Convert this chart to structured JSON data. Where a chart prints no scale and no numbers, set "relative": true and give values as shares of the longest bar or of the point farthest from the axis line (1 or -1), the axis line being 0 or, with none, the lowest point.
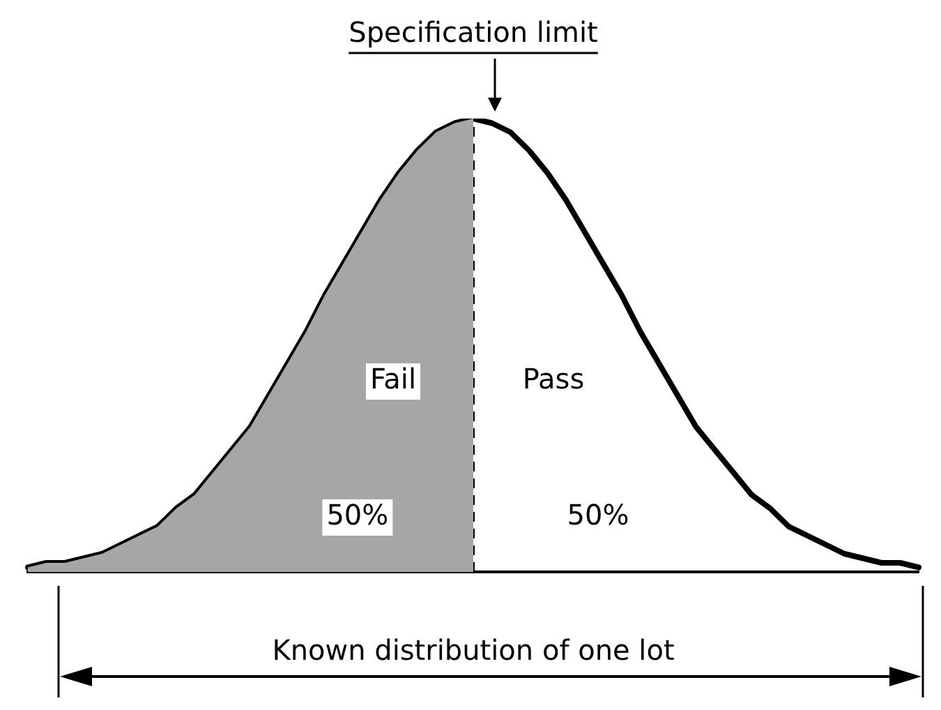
{
  "chart_data": {
    "type": "line",
    "relative": true,
    "categories": [
      null,
      null,
      null,
      null,
      null,
      null,
      null,
      null,
      null,
      null,
      null,
      null,
      null,
      null,
      null,
      null,
      null,
      null,
      null,
      null,
      null,
      null,
      null,
      null,
      null,
      null,
      null,
      null,
      null,
      null,
      null,
      null,
      null,
      null,
      null,
      null,
      null,
      null,
      null,
      null,
      null,
      null,
      null,
      null,
      null,
      null,
      null,
      null,
      null
    ],
    "series": [
      {
        "type": "area",
        "color": "#a6a6a6",
        "values": [
          0.01,
          0.02,
          0.02,
          0.03,
          0.04,
          0.06,
          0.08,
          0.1,
          0.14,
          0.17,
          0.22,
          0.27,
          0.32,
          0.39,
          0.46,
          0.53,
          0.61,
          0.68,
          0.75,
          0.82,
          0.88,
          0.93,
          0.97,
          0.99,
          1,
          null,
          null,
          null,
          null,
          null,
          null,
          null,
          null,
          null,
          null,
          null,
          null,
          null,
          null,
          null,
          null,
          null,
          null,
          null,
          null,
          null,
          null,
          null,
          null
        ]
      },
      {
        "color": "#000000",
        "values": [
          0.01,
          0.02,
          0.02,
          0.03,
          0.04,
          0.06,
          0.08,
          0.1,
          0.14,
          0.17,
          0.22,
          0.27,
          0.32,
          0.39,
          0.46,
          0.53,
          0.61,
          0.68,
          0.75,
          0.82,
          0.88,
          0.93,
          0.97,
          0.99,
          1,
          0.99,
          0.97,
          0.93,
          0.88,
          0.82,
          0.75,
          0.68,
          0.61,
          0.53,
          0.46,
          0.39,
          0.32,
          0.27,
          0.22,
          0.17,
          0.14,
          0.1,
          0.08,
          0.06,
          0.04,
          0.03,
          0.02,
          0.02,
          0.01
        ]
      }
    ],
    "ref_lines": [
      {
        "axis": "x",
        "label": "Specification limit",
        "line_style": "dashed",
        "color": "#000000"
      }
    ],
    "annotations": [
      "Fail",
      "Pass",
      "50%",
      "50%",
      "Known distribution of one lot"
    ],
    "tick_labels": false,
    "grid": false,
    "legend": false,
    "marker": "none",
    "line_style": "solid"
  }
}
